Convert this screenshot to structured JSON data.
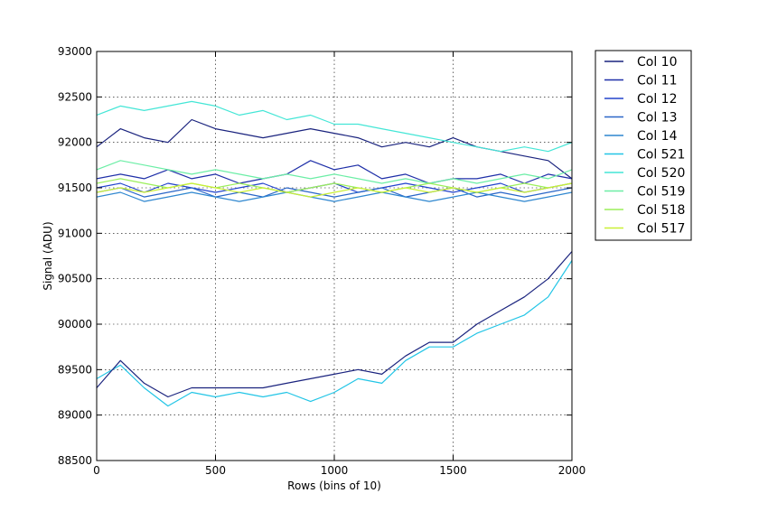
{
  "chart_data": {
    "type": "line",
    "title": "",
    "xlabel": "Rows (bins of 10)",
    "ylabel": "Signal (ADU)",
    "xlim": [
      0,
      2000
    ],
    "ylim": [
      88500,
      93000
    ],
    "xticks": [
      "0",
      "500",
      "1000",
      "1500",
      "2000"
    ],
    "yticks": [
      "88500",
      "89000",
      "89500",
      "90000",
      "90500",
      "91000",
      "91500",
      "92000",
      "92500",
      "93000"
    ],
    "grid": true,
    "legend_position": "outside-right-top",
    "x": [
      0,
      100,
      200,
      300,
      400,
      500,
      600,
      700,
      800,
      900,
      1000,
      1100,
      1200,
      1300,
      1400,
      1500,
      1600,
      1700,
      1800,
      1900,
      2000
    ],
    "series": [
      {
        "name": "Col 10",
        "color": "#1a237e",
        "values": [
          91950,
          92150,
          92050,
          92000,
          92250,
          92150,
          92100,
          92050,
          92100,
          92150,
          92100,
          92050,
          91950,
          92000,
          91950,
          92050,
          91950,
          91900,
          91850,
          91800,
          91600
        ]
      },
      {
        "name": "Col 11",
        "color": "#1e2fa8",
        "values": [
          91600,
          91650,
          91600,
          91700,
          91600,
          91650,
          91550,
          91600,
          91650,
          91800,
          91700,
          91750,
          91600,
          91650,
          91550,
          91600,
          91600,
          91650,
          91550,
          91650,
          91600
        ]
      },
      {
        "name": "Col 12",
        "color": "#2244cc",
        "values": [
          91500,
          91550,
          91450,
          91550,
          91500,
          91450,
          91500,
          91550,
          91450,
          91500,
          91550,
          91450,
          91500,
          91550,
          91500,
          91450,
          91500,
          91550,
          91450,
          91500,
          91550
        ]
      },
      {
        "name": "Col 13",
        "color": "#2a66c8",
        "values": [
          91450,
          91500,
          91400,
          91450,
          91500,
          91400,
          91450,
          91400,
          91500,
          91450,
          91400,
          91450,
          91500,
          91400,
          91450,
          91500,
          91400,
          91450,
          91400,
          91450,
          91500
        ]
      },
      {
        "name": "Col 14",
        "color": "#2e86cf",
        "values": [
          91400,
          91450,
          91350,
          91400,
          91450,
          91400,
          91350,
          91400,
          91450,
          91400,
          91350,
          91400,
          91450,
          91400,
          91350,
          91400,
          91450,
          91400,
          91350,
          91400,
          91450
        ]
      },
      {
        "name": "Col 521",
        "color": "#22c5e6",
        "values": [
          89400,
          89550,
          89300,
          89100,
          89250,
          89200,
          89250,
          89200,
          89250,
          89150,
          89250,
          89400,
          89350,
          89600,
          89750,
          89750,
          89900,
          90000,
          90100,
          90300,
          90700
        ]
      },
      {
        "name": "Col 520",
        "color": "#44e6d6",
        "values": [
          92300,
          92400,
          92350,
          92400,
          92450,
          92400,
          92300,
          92350,
          92250,
          92300,
          92200,
          92200,
          92150,
          92100,
          92050,
          92000,
          91950,
          91900,
          91950,
          91900,
          92000
        ]
      },
      {
        "name": "Col 519",
        "color": "#6ceea6",
        "values": [
          91700,
          91800,
          91750,
          91700,
          91650,
          91700,
          91650,
          91600,
          91650,
          91600,
          91650,
          91600,
          91550,
          91600,
          91550,
          91600,
          91550,
          91600,
          91650,
          91600,
          91700
        ]
      },
      {
        "name": "Col 518",
        "color": "#9bef5a",
        "values": [
          91550,
          91600,
          91550,
          91500,
          91550,
          91500,
          91550,
          91500,
          91450,
          91500,
          91550,
          91500,
          91450,
          91500,
          91550,
          91500,
          91450,
          91500,
          91550,
          91500,
          91550
        ]
      },
      {
        "name": "Col 517",
        "color": "#c9ef35",
        "values": [
          91450,
          91500,
          91450,
          91500,
          91550,
          91500,
          91450,
          91500,
          91450,
          91400,
          91450,
          91500,
          91450,
          91500,
          91450,
          91500,
          91450,
          91500,
          91450,
          91500,
          91550
        ]
      },
      {
        "name": "",
        "color": "#1a237e",
        "values": [
          89300,
          89600,
          89350,
          89200,
          89300,
          89300,
          89300,
          89300,
          89350,
          89400,
          89450,
          89500,
          89450,
          89650,
          89800,
          89800,
          90000,
          90150,
          90300,
          90500,
          90800
        ]
      }
    ]
  }
}
